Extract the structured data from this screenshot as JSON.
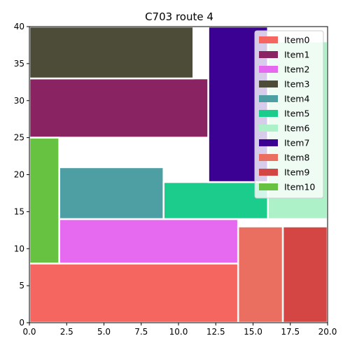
{
  "chart_data": {
    "type": "bar",
    "title": "C703 route 4",
    "xlabel": "",
    "ylabel": "",
    "xlim": [
      0,
      20
    ],
    "ylim": [
      0,
      40
    ],
    "xticks": [
      "0.0",
      "2.5",
      "5.0",
      "7.5",
      "10.0",
      "12.5",
      "15.0",
      "17.5",
      "20.0"
    ],
    "yticks": [
      "0",
      "5",
      "10",
      "15",
      "20",
      "25",
      "30",
      "35",
      "40"
    ],
    "grid": false,
    "legend_position": "top-right",
    "series": [
      {
        "name": "Item0",
        "color": "#f4665f",
        "rect": {
          "x0": 0,
          "x1": 14,
          "y0": 0,
          "y1": 8
        }
      },
      {
        "name": "Item1",
        "color": "#8a2361",
        "rect": {
          "x0": 0,
          "x1": 12,
          "y0": 25,
          "y1": 33
        }
      },
      {
        "name": "Item2",
        "color": "#e56af0",
        "rect": {
          "x0": 2,
          "x1": 14,
          "y0": 8,
          "y1": 14
        }
      },
      {
        "name": "Item3",
        "color": "#4c4c38",
        "rect": {
          "x0": 0,
          "x1": 11,
          "y0": 33,
          "y1": 40
        }
      },
      {
        "name": "Item4",
        "color": "#4e9fa4",
        "rect": {
          "x0": 2,
          "x1": 9,
          "y0": 14,
          "y1": 21
        }
      },
      {
        "name": "Item5",
        "color": "#1ccc8c",
        "rect": {
          "x0": 9,
          "x1": 16,
          "y0": 14,
          "y1": 19
        }
      },
      {
        "name": "Item6",
        "color": "#adf1c8",
        "rect": {
          "x0": 16,
          "x1": 20,
          "y0": 14,
          "y1": 38
        }
      },
      {
        "name": "Item7",
        "color": "#3a0192",
        "rect": {
          "x0": 12,
          "x1": 16,
          "y0": 19,
          "y1": 40
        }
      },
      {
        "name": "Item8",
        "color": "#ea6f61",
        "rect": {
          "x0": 14,
          "x1": 17,
          "y0": 0,
          "y1": 13
        }
      },
      {
        "name": "Item9",
        "color": "#d44644",
        "rect": {
          "x0": 17,
          "x1": 20,
          "y0": 0,
          "y1": 13
        }
      },
      {
        "name": "Item10",
        "color": "#66c240",
        "rect": {
          "x0": 0,
          "x1": 2,
          "y0": 8,
          "y1": 25
        }
      }
    ]
  }
}
